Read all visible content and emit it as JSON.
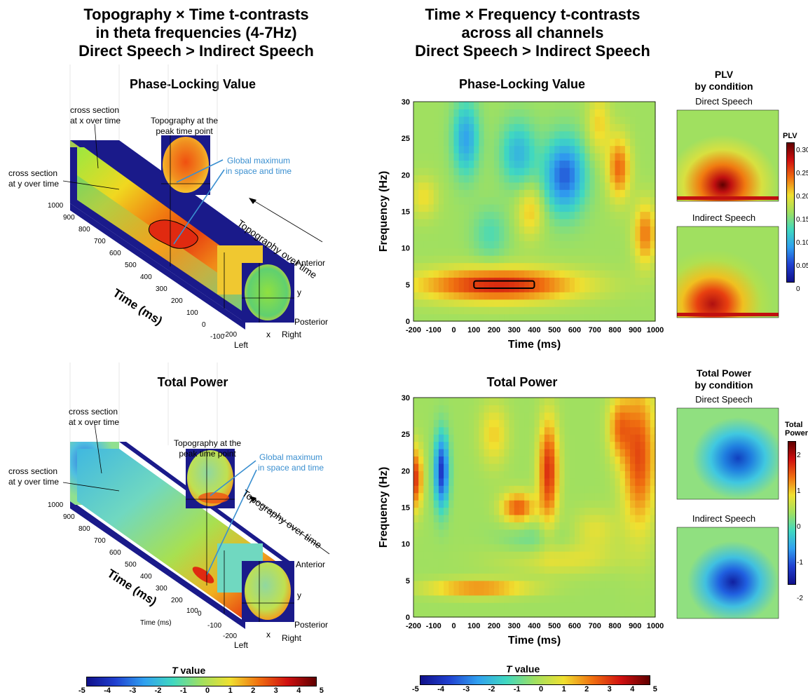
{
  "left_title": {
    "line1": "Topography × Time t-contrasts",
    "line2": "in theta frequencies (4-7Hz)",
    "line3": "Direct Speech > Indirect Speech"
  },
  "right_title": {
    "line1": "Time × Frequency t-contrasts",
    "line2": "across all channels",
    "line3": "Direct Speech > Indirect Speech"
  },
  "panels": {
    "plv_title": "Phase-Locking Value",
    "power_title": "Total Power"
  },
  "annotations": {
    "cross_x_1": "cross section",
    "cross_x_2": "at x over time",
    "cross_y_1": "cross section",
    "cross_y_2": "at y over time",
    "topo_peak_1": "Topography at the",
    "topo_peak_2": "peak time point",
    "global_max_1": "Global maximum",
    "global_max_2": "in space and time",
    "topo_over_time": "Topography over time",
    "time_axis": "Time (ms)",
    "time_axis_small": "Time (ms)",
    "anterior": "Anterior",
    "posterior": "Posterior",
    "left": "Left",
    "right": "Right",
    "x": "x",
    "y": "y",
    "time_ticks": [
      "1000",
      "900",
      "800",
      "700",
      "600",
      "500",
      "400",
      "300",
      "200",
      "100",
      "0",
      "-100",
      "-200"
    ]
  },
  "by_condition": {
    "plv_title_1": "PLV",
    "plv_title_2": "by condition",
    "power_title_1": "Total Power",
    "power_title_2": "by condition",
    "direct": "Direct Speech",
    "indirect": "Indirect Speech",
    "plv_cbar_label": "PLV",
    "plv_cbar_ticks": [
      "0.30",
      "0.25",
      "0.20",
      "0.15",
      "0.10",
      "0.05",
      "0"
    ],
    "power_cbar_label_1": "Total",
    "power_cbar_label_2": "Power",
    "power_cbar_ticks": [
      "2",
      "1",
      "0",
      "-1",
      "-2"
    ]
  },
  "colorbars": {
    "label_T": "T",
    "label_value": " value",
    "ticks": [
      "-5",
      "-4",
      "-3",
      "-2",
      "-1",
      "0",
      "1",
      "2",
      "3",
      "4",
      "5"
    ]
  },
  "chart_data": [
    {
      "type": "heatmap",
      "title": "Phase-Locking Value",
      "xlabel": "Time (ms)",
      "ylabel": "Frequency (Hz)",
      "x_ticks": [
        -200,
        -100,
        0,
        100,
        200,
        300,
        400,
        500,
        600,
        700,
        800,
        900,
        1000
      ],
      "y_ticks": [
        0,
        5,
        10,
        15,
        20,
        25,
        30
      ],
      "xlim": [
        -200,
        1000
      ],
      "ylim": [
        0,
        30
      ],
      "clim": [
        -5,
        5
      ],
      "blobs": [
        {
          "t": 220,
          "f": 5,
          "sigma_t": 280,
          "sigma_f": 1.6,
          "value": 3.6
        },
        {
          "t": 550,
          "f": 20,
          "sigma_t": 70,
          "sigma_f": 3.5,
          "value": -3.4
        },
        {
          "t": 60,
          "f": 25,
          "sigma_t": 45,
          "sigma_f": 3.5,
          "value": -2.4
        },
        {
          "t": 320,
          "f": 23,
          "sigma_t": 60,
          "sigma_f": 3.0,
          "value": -2.0
        },
        {
          "t": 820,
          "f": 21,
          "sigma_t": 40,
          "sigma_f": 3.0,
          "value": 2.6
        },
        {
          "t": 950,
          "f": 12,
          "sigma_t": 40,
          "sigma_f": 3.0,
          "value": 2.4
        },
        {
          "t": 720,
          "f": 27,
          "sigma_t": 40,
          "sigma_f": 3.0,
          "value": 1.4
        },
        {
          "t": -150,
          "f": 17,
          "sigma_t": 50,
          "sigma_f": 2.0,
          "value": 1.2
        },
        {
          "t": 380,
          "f": 15,
          "sigma_t": 45,
          "sigma_f": 2.5,
          "value": 1.5
        },
        {
          "t": 180,
          "f": 12,
          "sigma_t": 60,
          "sigma_f": 2.5,
          "value": -1.0
        }
      ],
      "peak_box": {
        "t_start": 100,
        "t_end": 400,
        "f_low": 4.5,
        "f_high": 5.5
      }
    },
    {
      "type": "heatmap",
      "title": "Total Power",
      "xlabel": "Time (ms)",
      "ylabel": "Frequency (Hz)",
      "x_ticks": [
        -200,
        -100,
        0,
        100,
        200,
        300,
        400,
        500,
        600,
        700,
        800,
        900,
        1000
      ],
      "y_ticks": [
        0,
        5,
        10,
        15,
        20,
        25,
        30
      ],
      "xlim": [
        -200,
        1000
      ],
      "ylim": [
        0,
        30
      ],
      "clim": [
        -5,
        5
      ],
      "blobs": [
        {
          "t": -60,
          "f": 20,
          "sigma_t": 25,
          "sigma_f": 3.5,
          "value": -4.0
        },
        {
          "t": -190,
          "f": 19,
          "sigma_t": 25,
          "sigma_f": 3.0,
          "value": 3.2
        },
        {
          "t": 470,
          "f": 20,
          "sigma_t": 35,
          "sigma_f": 5.0,
          "value": 3.4
        },
        {
          "t": 320,
          "f": 15,
          "sigma_t": 60,
          "sigma_f": 1.5,
          "value": 2.8
        },
        {
          "t": 920,
          "f": 22,
          "sigma_t": 60,
          "sigma_f": 7.0,
          "value": 3.0
        },
        {
          "t": 820,
          "f": 26,
          "sigma_t": 40,
          "sigma_f": 3.0,
          "value": 2.0
        },
        {
          "t": 120,
          "f": 4,
          "sigma_t": 180,
          "sigma_f": 0.8,
          "value": 2.4
        },
        {
          "t": 500,
          "f": 8,
          "sigma_t": 200,
          "sigma_f": 1.5,
          "value": 1.2
        },
        {
          "t": 200,
          "f": 25,
          "sigma_t": 50,
          "sigma_f": 3.0,
          "value": 1.4
        },
        {
          "t": 700,
          "f": 12,
          "sigma_t": 80,
          "sigma_f": 2.0,
          "value": 1.0
        },
        {
          "t": 400,
          "f": 10,
          "sigma_t": 120,
          "sigma_f": 2.0,
          "value": -0.8
        }
      ]
    }
  ]
}
